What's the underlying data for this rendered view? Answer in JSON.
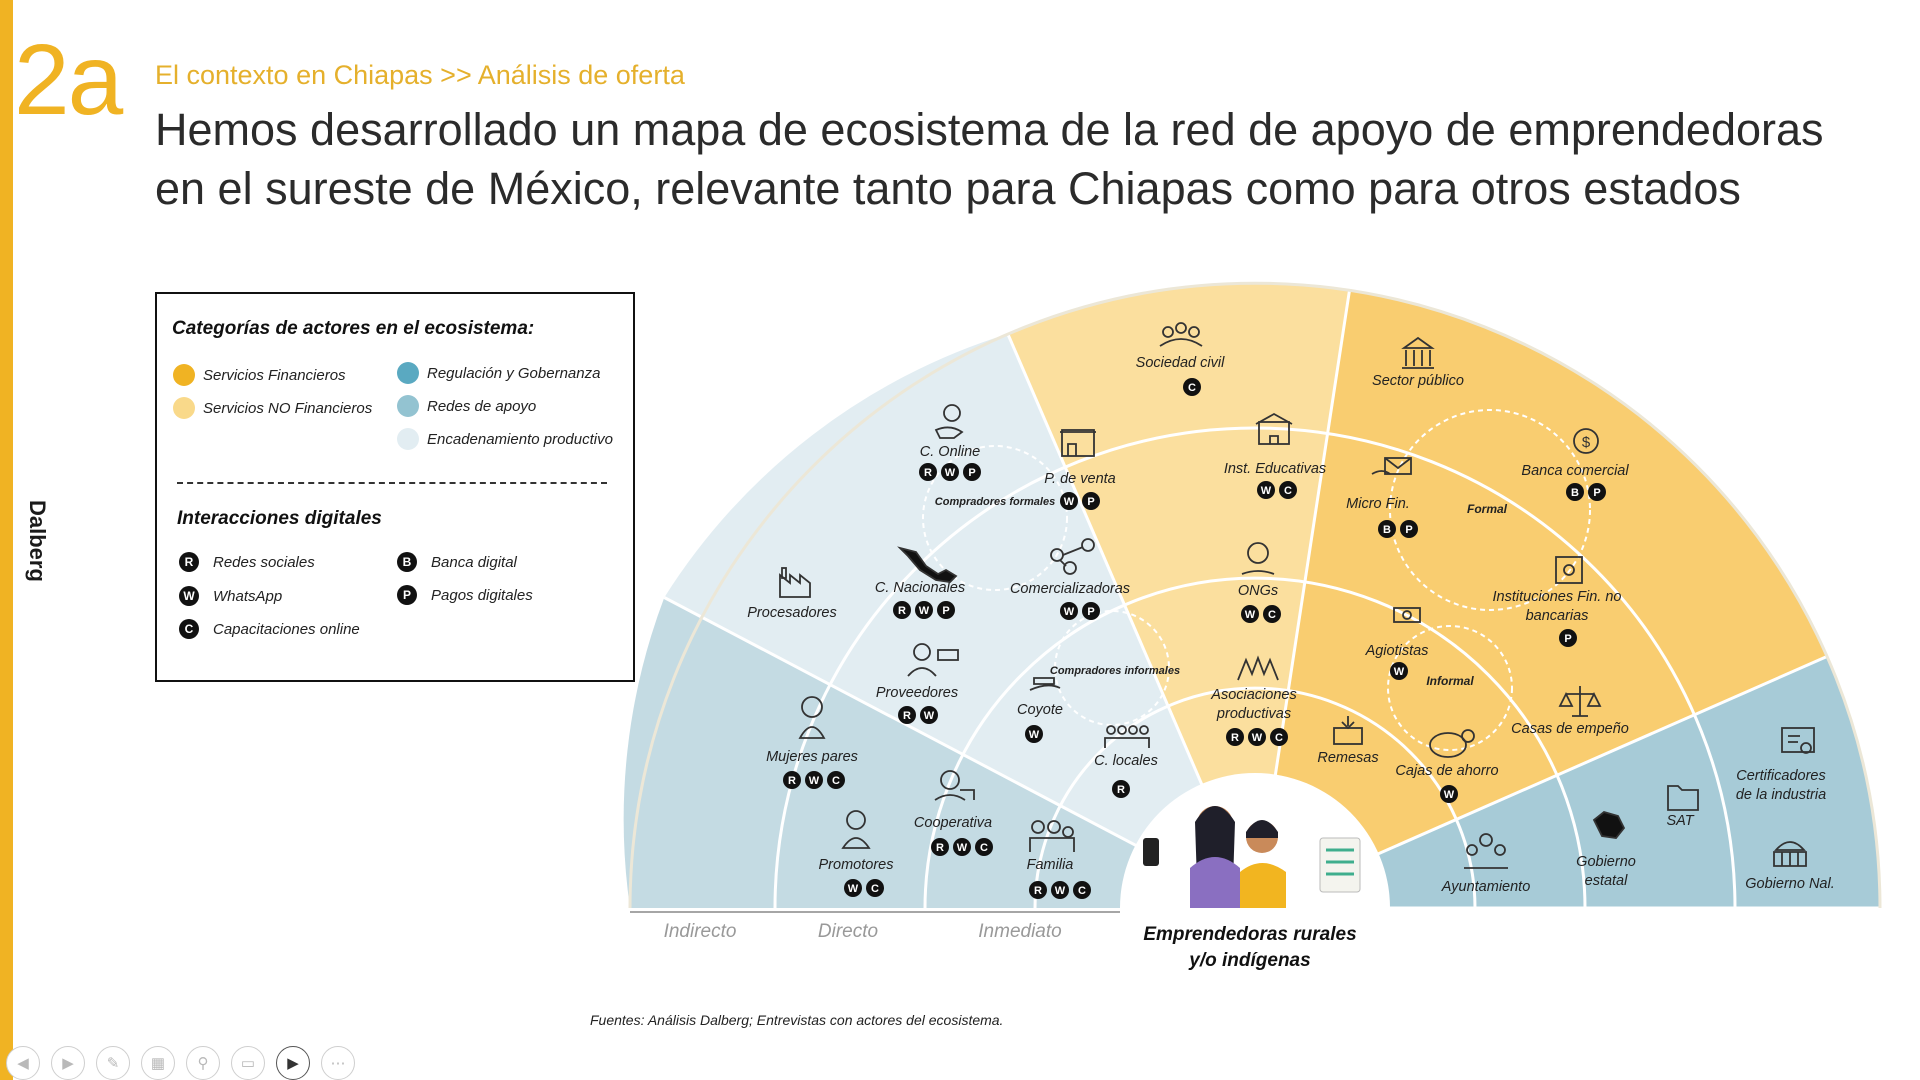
{
  "slide_number": "2a",
  "breadcrumb": "El contexto en Chiapas >> Análisis de oferta",
  "headline": "Hemos desarrollado un mapa de ecosistema de la red de apoyo de emprendedoras en el sureste de México, relevante tanto para Chiapas como para otros estados",
  "brand": "Dalberg",
  "colors": {
    "accent": "#f0b323",
    "servicios_financieros": "#f0b323",
    "servicios_no_financieros": "#f9d98a",
    "regulacion": "#5aa9c1",
    "redes_de_apoyo": "#93c3d1",
    "encadenamiento": "#e2edf2",
    "badge": "#111111"
  },
  "legend": {
    "title_categories": "Categorías de actores en el ecosistema:",
    "categories": [
      {
        "label": "Servicios Financieros",
        "color": "#f0b323"
      },
      {
        "label": "Servicios NO Financieros",
        "color": "#f9d98a"
      },
      {
        "label": "Regulación y Gobernanza",
        "color": "#5aa9c1"
      },
      {
        "label": "Redes de apoyo",
        "color": "#93c3d1"
      },
      {
        "label": "Encadenamiento productivo",
        "color": "#e2edf2"
      }
    ],
    "title_digital": "Interacciones digitales",
    "digital": [
      {
        "code": "R",
        "label": "Redes sociales"
      },
      {
        "code": "W",
        "label": "WhatsApp"
      },
      {
        "code": "C",
        "label": "Capacitaciones online"
      },
      {
        "code": "B",
        "label": "Banca digital"
      },
      {
        "code": "P",
        "label": "Pagos digitales"
      }
    ]
  },
  "rings": [
    "Indirecto",
    "Directo",
    "Inmediato"
  ],
  "center": {
    "label_line1": "Emprendedoras rurales",
    "label_line2": "y/o indígenas"
  },
  "groups": [
    "Compradores formales",
    "Compradores informales",
    "Formal",
    "Informal"
  ],
  "actors": [
    {
      "name": "C. Online",
      "badges": [
        "R",
        "W",
        "P"
      ],
      "icon": "online-buyer-icon"
    },
    {
      "name": "P. de venta",
      "badges": [
        "W",
        "P"
      ],
      "icon": "storefront-icon"
    },
    {
      "name": "C. Nacionales",
      "badges": [
        "R",
        "W",
        "P"
      ],
      "icon": "mexico-map-icon"
    },
    {
      "name": "Comercializadoras",
      "badges": [
        "W",
        "P"
      ],
      "icon": "people-network-icon"
    },
    {
      "name": "Procesadores",
      "badges": [],
      "icon": "factory-icon"
    },
    {
      "name": "Proveedores",
      "badges": [
        "R",
        "W"
      ],
      "icon": "supplier-icon"
    },
    {
      "name": "Coyote",
      "badges": [
        "W"
      ],
      "icon": "hand-money-icon"
    },
    {
      "name": "C. locales",
      "badges": [
        "R"
      ],
      "icon": "local-buyers-icon"
    },
    {
      "name": "Mujeres pares",
      "badges": [
        "R",
        "W",
        "C"
      ],
      "icon": "woman-icon"
    },
    {
      "name": "Promotores",
      "badges": [
        "W",
        "C"
      ],
      "icon": "promoter-icon"
    },
    {
      "name": "Cooperativa",
      "badges": [
        "R",
        "W",
        "C"
      ],
      "icon": "cooperative-icon"
    },
    {
      "name": "Familia",
      "badges": [
        "R",
        "W",
        "C"
      ],
      "icon": "family-icon"
    },
    {
      "name": "Sociedad civil",
      "badges": [
        "C"
      ],
      "icon": "civil-society-icon"
    },
    {
      "name": "Sector público",
      "badges": [],
      "icon": "government-building-icon"
    },
    {
      "name": "Inst. Educativas",
      "badges": [
        "W",
        "C"
      ],
      "icon": "school-icon"
    },
    {
      "name": "Micro Fin.",
      "badges": [
        "B",
        "P"
      ],
      "icon": "microfinance-icon"
    },
    {
      "name": "Banca comercial",
      "badges": [
        "B",
        "P"
      ],
      "icon": "bank-money-icon"
    },
    {
      "name": "ONGs",
      "badges": [
        "W",
        "C"
      ],
      "icon": "globe-hand-icon"
    },
    {
      "name": "Agiotistas",
      "badges": [
        "W"
      ],
      "icon": "cash-icon"
    },
    {
      "name": "Instituciones Fin. no bancarias",
      "badges": [
        "P"
      ],
      "icon": "safe-icon"
    },
    {
      "name": "Asociaciones productivas",
      "badges": [
        "R",
        "W",
        "C"
      ],
      "icon": "hands-icon"
    },
    {
      "name": "Remesas",
      "badges": [],
      "icon": "remittance-icon"
    },
    {
      "name": "Cajas de ahorro",
      "badges": [
        "W"
      ],
      "icon": "piggy-bank-icon"
    },
    {
      "name": "Casas de empeño",
      "badges": [],
      "icon": "scale-icon"
    },
    {
      "name": "Certificadores de la industria",
      "badges": [],
      "icon": "certificate-icon"
    },
    {
      "name": "SAT",
      "badges": [],
      "icon": "tax-folder-icon"
    },
    {
      "name": "Gobierno estatal",
      "badges": [],
      "icon": "chiapas-map-icon"
    },
    {
      "name": "Ayuntamiento",
      "badges": [],
      "icon": "town-council-icon"
    },
    {
      "name": "Gobierno Nal.",
      "badges": [],
      "icon": "capitol-icon"
    }
  ],
  "source": "Fuentes: Análisis Dalberg; Entrevistas con actores del ecosistema.",
  "toolbar": [
    "prev-slide",
    "next-slide",
    "pen",
    "slides-grid",
    "zoom",
    "subtitles",
    "camera",
    "more"
  ]
}
